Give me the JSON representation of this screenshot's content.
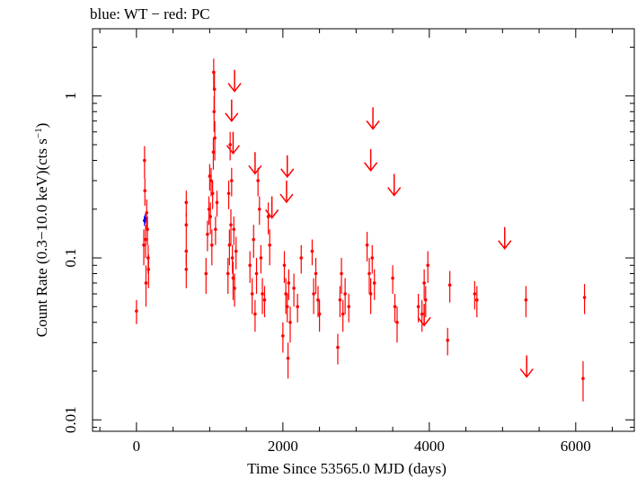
{
  "chart_data": {
    "type": "scatter",
    "title": "blue: WT − red: PC",
    "xlabel": "Time Since 53565.0 MJD (days)",
    "ylabel_main": "Count Rate (0.3−10.0 keV)(cts s",
    "ylabel_sup": "−1",
    "ylabel_close": ")",
    "xlim": [
      -600,
      6800
    ],
    "ylim": [
      0.0085,
      2.6
    ],
    "yscale": "log",
    "xticks": [
      0,
      2000,
      4000,
      6000
    ],
    "xtick_labels": [
      "0",
      "2000",
      "4000",
      "6000"
    ],
    "yticks": [
      0.01,
      0.1,
      1
    ],
    "ytick_labels": [
      "0.01",
      "0.1",
      "1"
    ],
    "grid": false,
    "colors": {
      "WT": "#0000ff",
      "PC": "#ff0000",
      "axes": "#000000"
    },
    "series": [
      {
        "mode": "WT",
        "points": [
          [
            110,
            0.17,
            0.012
          ],
          [
            120,
            0.175,
            0.012
          ]
        ]
      },
      {
        "mode": "PC",
        "points": [
          [
            0,
            0.047,
            0.008
          ],
          [
            100,
            0.12,
            0.03
          ],
          [
            110,
            0.4,
            0.09
          ],
          [
            115,
            0.26,
            0.05
          ],
          [
            125,
            0.13,
            0.03
          ],
          [
            130,
            0.07,
            0.02
          ],
          [
            140,
            0.19,
            0.04
          ],
          [
            150,
            0.15,
            0.03
          ],
          [
            160,
            0.1,
            0.02
          ],
          [
            165,
            0.085,
            0.02
          ],
          [
            680,
            0.22,
            0.04
          ],
          [
            680,
            0.16,
            0.03
          ],
          [
            680,
            0.11,
            0.02
          ],
          [
            680,
            0.085,
            0.02
          ],
          [
            950,
            0.08,
            0.02
          ],
          [
            970,
            0.14,
            0.03
          ],
          [
            990,
            0.2,
            0.04
          ],
          [
            1000,
            0.32,
            0.06
          ],
          [
            1010,
            0.18,
            0.04
          ],
          [
            1020,
            0.3,
            0.06
          ],
          [
            1030,
            0.12,
            0.03
          ],
          [
            1040,
            0.25,
            0.05
          ],
          [
            1050,
            0.45,
            0.1
          ],
          [
            1055,
            1.4,
            0.3
          ],
          [
            1060,
            0.8,
            0.2
          ],
          [
            1065,
            1.1,
            0.3
          ],
          [
            1070,
            0.55,
            0.15
          ],
          [
            1080,
            0.15,
            0.03
          ],
          [
            1100,
            0.22,
            0.04
          ],
          [
            1250,
            0.08,
            0.02
          ],
          [
            1260,
            0.25,
            0.05
          ],
          [
            1270,
            0.12,
            0.03
          ],
          [
            1280,
            0.5,
            0.1
          ],
          [
            1290,
            0.16,
            0.04
          ],
          [
            1300,
            0.3,
            0.06
          ],
          [
            1310,
            0.1,
            0.02
          ],
          [
            1320,
            0.075,
            0.02
          ],
          [
            1330,
            0.15,
            0.03
          ],
          [
            1340,
            0.065,
            0.015
          ],
          [
            1360,
            0.11,
            0.025
          ],
          [
            1550,
            0.09,
            0.02
          ],
          [
            1580,
            0.06,
            0.015
          ],
          [
            1600,
            0.13,
            0.03
          ],
          [
            1620,
            0.045,
            0.01
          ],
          [
            1640,
            0.08,
            0.02
          ],
          [
            1660,
            0.3,
            0.06
          ],
          [
            1680,
            0.2,
            0.04
          ],
          [
            1700,
            0.1,
            0.02
          ],
          [
            1720,
            0.06,
            0.015
          ],
          [
            1750,
            0.055,
            0.012
          ],
          [
            1800,
            0.18,
            0.04
          ],
          [
            1820,
            0.12,
            0.03
          ],
          [
            2000,
            0.033,
            0.007
          ],
          [
            2020,
            0.09,
            0.02
          ],
          [
            2040,
            0.06,
            0.015
          ],
          [
            2060,
            0.05,
            0.01
          ],
          [
            2070,
            0.024,
            0.006
          ],
          [
            2080,
            0.07,
            0.015
          ],
          [
            2100,
            0.04,
            0.01
          ],
          [
            2150,
            0.065,
            0.015
          ],
          [
            2200,
            0.05,
            0.01
          ],
          [
            2250,
            0.1,
            0.02
          ],
          [
            2400,
            0.11,
            0.02
          ],
          [
            2420,
            0.06,
            0.015
          ],
          [
            2450,
            0.08,
            0.02
          ],
          [
            2480,
            0.055,
            0.012
          ],
          [
            2500,
            0.045,
            0.01
          ],
          [
            2750,
            0.028,
            0.006
          ],
          [
            2780,
            0.055,
            0.012
          ],
          [
            2800,
            0.08,
            0.02
          ],
          [
            2820,
            0.045,
            0.01
          ],
          [
            2850,
            0.06,
            0.015
          ],
          [
            2900,
            0.05,
            0.01
          ],
          [
            3150,
            0.12,
            0.025
          ],
          [
            3180,
            0.08,
            0.02
          ],
          [
            3200,
            0.06,
            0.015
          ],
          [
            3220,
            0.1,
            0.02
          ],
          [
            3250,
            0.07,
            0.015
          ],
          [
            3500,
            0.075,
            0.015
          ],
          [
            3530,
            0.05,
            0.01
          ],
          [
            3560,
            0.04,
            0.01
          ],
          [
            3850,
            0.05,
            0.01
          ],
          [
            3900,
            0.045,
            0.01
          ],
          [
            3930,
            0.07,
            0.015
          ],
          [
            3950,
            0.055,
            0.012
          ],
          [
            3980,
            0.09,
            0.02
          ],
          [
            4250,
            0.031,
            0.006
          ],
          [
            4280,
            0.068,
            0.015
          ],
          [
            4620,
            0.06,
            0.012
          ],
          [
            4650,
            0.055,
            0.012
          ],
          [
            5320,
            0.055,
            0.012
          ],
          [
            6100,
            0.018,
            0.005
          ],
          [
            6120,
            0.057,
            0.012
          ]
        ],
        "upper_limits": [
          [
            1340,
            1.45
          ],
          [
            1300,
            0.95
          ],
          [
            1320,
            0.6
          ],
          [
            1620,
            0.45
          ],
          [
            1850,
            0.24
          ],
          [
            2060,
            0.43
          ],
          [
            2050,
            0.3
          ],
          [
            3230,
            0.85
          ],
          [
            3200,
            0.47
          ],
          [
            3520,
            0.33
          ],
          [
            3930,
            0.052
          ],
          [
            5030,
            0.155
          ],
          [
            5330,
            0.025
          ]
        ]
      }
    ]
  }
}
